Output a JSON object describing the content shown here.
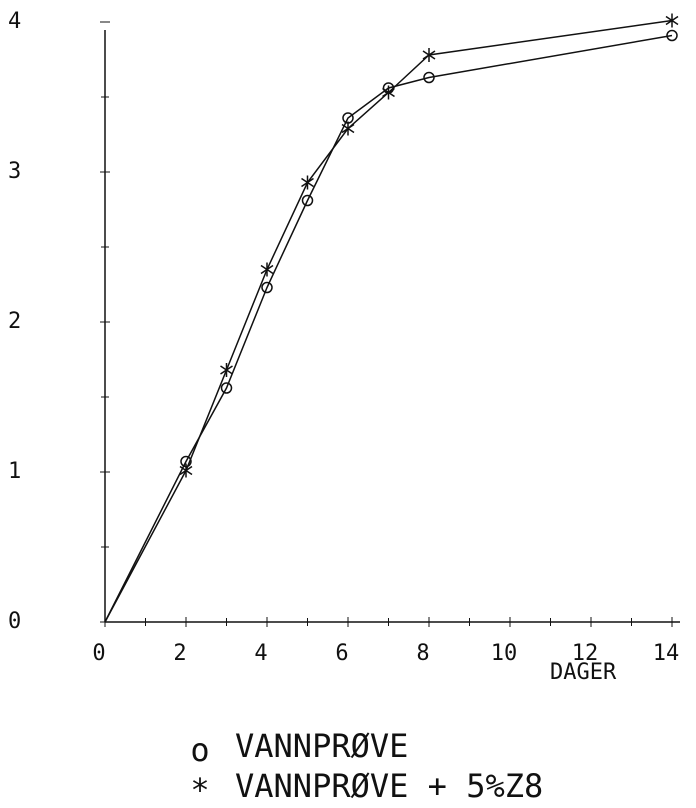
{
  "chart_data": {
    "type": "line",
    "x_label": "DAGER",
    "x": [
      0,
      2,
      3,
      4,
      5,
      6,
      7,
      8,
      14
    ],
    "series": [
      {
        "name": "VANNPRØVE",
        "marker": "o",
        "color": "#111111",
        "values": [
          0,
          1.07,
          1.56,
          2.23,
          2.81,
          3.36,
          3.56,
          3.63,
          3.91
        ]
      },
      {
        "name": "VANNPRØVE + 5%Z8",
        "marker": "*",
        "color": "#111111",
        "values": [
          0,
          1.01,
          1.68,
          2.35,
          2.93,
          3.29,
          3.53,
          3.78,
          4.01
        ]
      }
    ],
    "xlim": [
      0,
      14
    ],
    "xticks": [
      0,
      2,
      4,
      6,
      8,
      10,
      12,
      14
    ],
    "ylim": [
      0,
      4
    ],
    "yticks": [
      0,
      1,
      2,
      3,
      4
    ]
  }
}
